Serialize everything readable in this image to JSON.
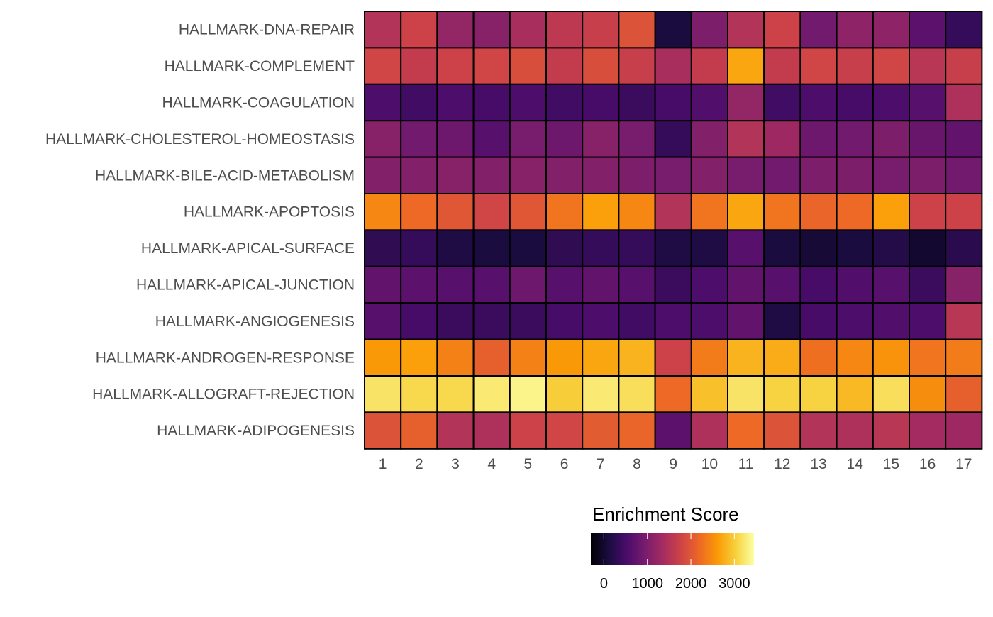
{
  "chart_data": {
    "type": "heatmap",
    "title": "",
    "xlabel": "",
    "ylabel": "",
    "x_categories": [
      "1",
      "2",
      "3",
      "4",
      "5",
      "6",
      "7",
      "8",
      "9",
      "10",
      "11",
      "12",
      "13",
      "14",
      "15",
      "16",
      "17"
    ],
    "y_categories": [
      "HALLMARK-DNA-REPAIR",
      "HALLMARK-COMPLEMENT",
      "HALLMARK-COAGULATION",
      "HALLMARK-CHOLESTEROL-HOMEOSTASIS",
      "HALLMARK-BILE-ACID-METABOLISM",
      "HALLMARK-APOPTOSIS",
      "HALLMARK-APICAL-SURFACE",
      "HALLMARK-APICAL-JUNCTION",
      "HALLMARK-ANGIOGENESIS",
      "HALLMARK-ANDROGEN-RESPONSE",
      "HALLMARK-ALLOGRAFT-REJECTION",
      "HALLMARK-ADIPOGENESIS"
    ],
    "values": [
      [
        1500,
        1750,
        1200,
        1100,
        1400,
        1600,
        1700,
        1950,
        100,
        1000,
        1500,
        1750,
        900,
        1150,
        1150,
        700,
        350
      ],
      [
        1800,
        1650,
        1750,
        1800,
        1900,
        1650,
        1900,
        1700,
        1400,
        1650,
        2700,
        1650,
        1800,
        1700,
        1800,
        1550,
        1700
      ],
      [
        550,
        450,
        550,
        500,
        550,
        450,
        500,
        400,
        500,
        600,
        1200,
        450,
        550,
        500,
        550,
        650,
        1450
      ],
      [
        1100,
        900,
        850,
        650,
        950,
        850,
        1100,
        950,
        350,
        1050,
        1500,
        1300,
        850,
        900,
        1000,
        800,
        750
      ],
      [
        1050,
        1050,
        1100,
        1050,
        1100,
        1050,
        1050,
        1000,
        950,
        1050,
        950,
        900,
        1000,
        1000,
        950,
        1000,
        900
      ],
      [
        2450,
        2200,
        2000,
        1800,
        2000,
        2300,
        2650,
        2450,
        1500,
        2300,
        2700,
        2300,
        2150,
        2200,
        2650,
        1750,
        1750
      ],
      [
        300,
        350,
        150,
        100,
        100,
        300,
        350,
        350,
        150,
        150,
        650,
        100,
        50,
        100,
        200,
        0,
        250
      ],
      [
        750,
        700,
        650,
        650,
        850,
        650,
        750,
        650,
        400,
        550,
        750,
        650,
        500,
        600,
        650,
        400,
        1100
      ],
      [
        650,
        500,
        400,
        400,
        400,
        500,
        550,
        450,
        550,
        550,
        750,
        150,
        500,
        550,
        600,
        550,
        1550
      ],
      [
        2600,
        2650,
        2400,
        2100,
        2400,
        2600,
        2700,
        2800,
        1750,
        2350,
        2800,
        2750,
        2250,
        2450,
        2550,
        2300,
        2350
      ],
      [
        3200,
        3100,
        3100,
        3250,
        3350,
        3000,
        3250,
        3150,
        2200,
        2900,
        3200,
        3050,
        3050,
        2850,
        3150,
        2500,
        2100
      ],
      [
        1950,
        2100,
        1500,
        1450,
        1750,
        1800,
        2050,
        2150,
        700,
        1450,
        2200,
        1950,
        1500,
        1450,
        1550,
        1350,
        1300
      ]
    ],
    "colorbar": {
      "title": "Enrichment Score",
      "min": -300,
      "max": 3450,
      "ticks": [
        0,
        1000,
        2000,
        3000
      ],
      "tick_labels": [
        "0",
        "1000",
        "2000",
        "3000"
      ],
      "colormap": "inferno",
      "colormap_stops": [
        "#000004",
        "#1b0c41",
        "#4a0c6b",
        "#781c6d",
        "#a52c60",
        "#cf4446",
        "#ed6925",
        "#fb9b06",
        "#f7d13d",
        "#fcffa4"
      ]
    },
    "grid": false,
    "legend_position": "bottom"
  }
}
